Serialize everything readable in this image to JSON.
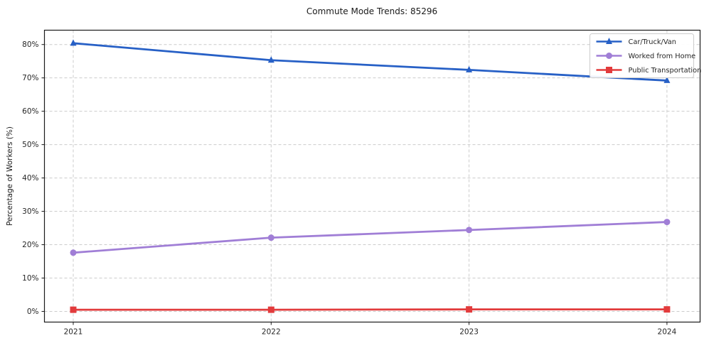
{
  "title": "Commute Mode Trends: 85296",
  "chart_data": {
    "type": "line",
    "title": "Commute Mode Trends: 85296",
    "xlabel": "",
    "ylabel": "Percentage of Workers (%)",
    "x": [
      2021,
      2022,
      2023,
      2024
    ],
    "xticks": [
      "2021",
      "2022",
      "2023",
      "2024"
    ],
    "ytick_values": [
      0,
      10,
      20,
      30,
      40,
      50,
      60,
      70,
      80
    ],
    "yticks": [
      "0%",
      "10%",
      "20%",
      "30%",
      "40%",
      "50%",
      "60%",
      "70%",
      "80%"
    ],
    "ylim": [
      -3.2,
      84.3
    ],
    "grid": "dashed",
    "legend_position": "upper right",
    "series": [
      {
        "name": "Car/Truck/Van",
        "marker": "triangle",
        "color": "#2760c6",
        "values": [
          80.4,
          75.3,
          72.4,
          69.2
        ]
      },
      {
        "name": "Worked from Home",
        "marker": "circle",
        "color": "#a07ed6",
        "values": [
          17.6,
          22.1,
          24.4,
          26.8
        ]
      },
      {
        "name": "Public Transportation",
        "marker": "square",
        "color": "#e23b3c",
        "values": [
          0.5,
          0.5,
          0.6,
          0.6
        ]
      }
    ]
  },
  "colors": {
    "grid": "#cccccc",
    "spine": "#1a1a1a",
    "tick_text": "#262626",
    "legend_border": "#cccccc",
    "background": "#ffffff"
  }
}
